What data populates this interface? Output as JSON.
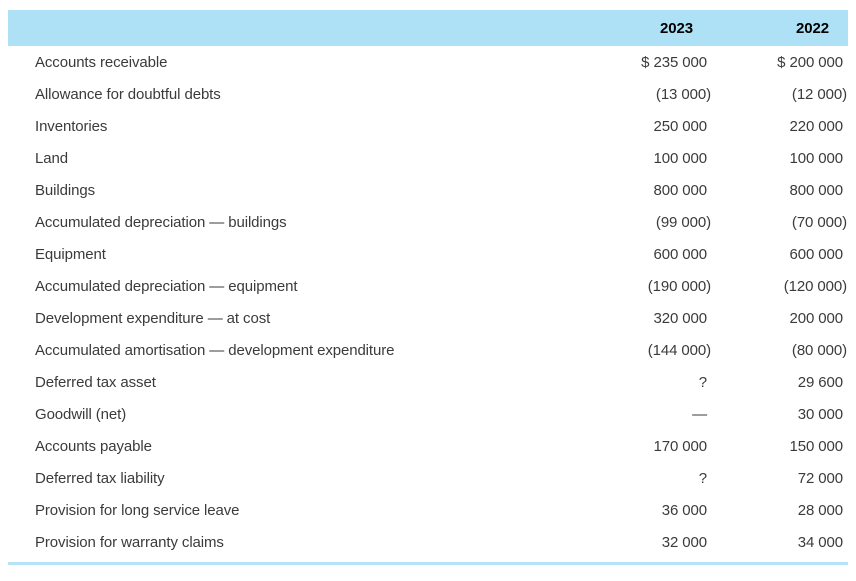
{
  "table": {
    "columns": {
      "year_1": "2023",
      "year_2": "2022"
    },
    "rows": [
      {
        "label": "Accounts receivable",
        "y2023": "$ 235 000",
        "y2022": "$ 200 000"
      },
      {
        "label": "Allowance for doubtful debts",
        "y2023": "(13 000)",
        "y2022": "(12 000)"
      },
      {
        "label": "Inventories",
        "y2023": "250 000",
        "y2022": "220 000"
      },
      {
        "label": "Land",
        "y2023": "100 000",
        "y2022": "100 000"
      },
      {
        "label": "Buildings",
        "y2023": "800 000",
        "y2022": "800 000"
      },
      {
        "label": "Accumulated depreciation — buildings",
        "y2023": "(99 000)",
        "y2022": "(70 000)"
      },
      {
        "label": "Equipment",
        "y2023": "600 000",
        "y2022": "600 000"
      },
      {
        "label": "Accumulated depreciation — equipment",
        "y2023": "(190 000)",
        "y2022": "(120 000)"
      },
      {
        "label": "Development expenditure — at cost",
        "y2023": "320 000",
        "y2022": "200 000"
      },
      {
        "label": "Accumulated amortisation — development expenditure",
        "y2023": "(144 000)",
        "y2022": "(80 000)"
      },
      {
        "label": "Deferred tax asset",
        "y2023": "?",
        "y2022": "29 600"
      },
      {
        "label": "Goodwill (net)",
        "y2023": "—",
        "y2022": "30 000"
      },
      {
        "label": "Accounts payable",
        "y2023": "170 000",
        "y2022": "150 000"
      },
      {
        "label": "Deferred tax liability",
        "y2023": "?",
        "y2022": "72 000"
      },
      {
        "label": "Provision for long service leave",
        "y2023": "36 000",
        "y2022": "28 000"
      },
      {
        "label": "Provision for warranty claims",
        "y2023": "32 000",
        "y2022": "34 000"
      }
    ]
  },
  "colors": {
    "header_background": "#aee0f6",
    "bottom_rule": "#b5e4f6",
    "body_text": "#3b3b3b",
    "header_text": "#000000"
  }
}
